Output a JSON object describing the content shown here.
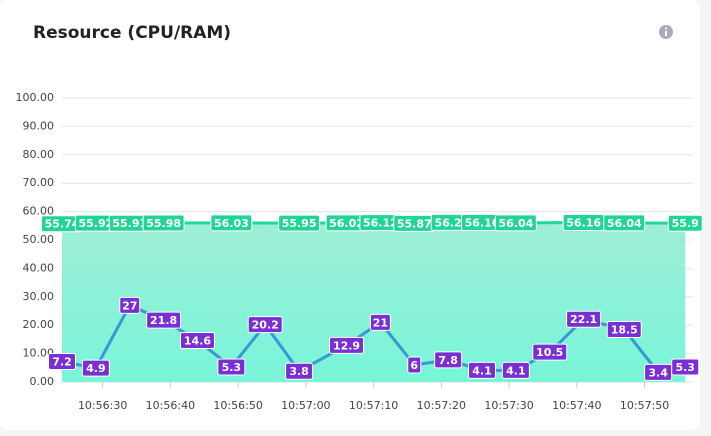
{
  "title": "Resource (CPU/RAM)",
  "chart_data": {
    "type": "line",
    "ylim": [
      0,
      100
    ],
    "yticks": [
      {
        "value": 0,
        "label": "0.00"
      },
      {
        "value": 10,
        "label": "10.00"
      },
      {
        "value": 20,
        "label": "20.00"
      },
      {
        "value": 30,
        "label": "30.00"
      },
      {
        "value": 40,
        "label": "40.00"
      },
      {
        "value": 50,
        "label": "50.00"
      },
      {
        "value": 60,
        "label": "60.00"
      },
      {
        "value": 70,
        "label": "70.00"
      },
      {
        "value": 80,
        "label": "80.00"
      },
      {
        "value": 90,
        "label": "90.00"
      },
      {
        "value": 100,
        "label": "100.00"
      }
    ],
    "xlim": [
      "10:56:24",
      "10:57:57"
    ],
    "xticks": [
      "10:56:30",
      "10:56:40",
      "10:56:50",
      "10:57:00",
      "10:57:10",
      "10:57:20",
      "10:57:30",
      "10:57:40",
      "10:57:50"
    ],
    "grid": true,
    "series": [
      {
        "color": "#22d79a",
        "area": true,
        "label_color": "#22d597",
        "x": [
          "10:56:24",
          "10:56:29",
          "10:56:34",
          "10:56:39",
          "10:56:49",
          "10:56:59",
          "10:57:06",
          "10:57:11",
          "10:57:16",
          "10:57:21",
          "10:57:26",
          "10:57:31",
          "10:57:41",
          "10:57:47",
          "10:57:56"
        ],
        "values": [
          55.74,
          55.92,
          55.91,
          55.98,
          56.03,
          55.95,
          56.02,
          56.12,
          55.87,
          56.2,
          56.16,
          56.04,
          56.16,
          56.04,
          55.9
        ]
      },
      {
        "color": "#3b97d3",
        "label_color": "#7a2fd4",
        "x": [
          "10:56:24",
          "10:56:29",
          "10:56:34",
          "10:56:39",
          "10:56:44",
          "10:56:49",
          "10:56:54",
          "10:56:59",
          "10:57:06",
          "10:57:11",
          "10:57:16",
          "10:57:21",
          "10:57:26",
          "10:57:31",
          "10:57:36",
          "10:57:41",
          "10:57:47",
          "10:57:52",
          "10:57:56"
        ],
        "values": [
          7.2,
          4.9,
          27,
          21.8,
          14.6,
          5.3,
          20.2,
          3.8,
          12.9,
          21,
          6,
          7.8,
          4.1,
          4.1,
          10.5,
          22.1,
          18.5,
          3.4,
          5.3
        ]
      }
    ]
  }
}
